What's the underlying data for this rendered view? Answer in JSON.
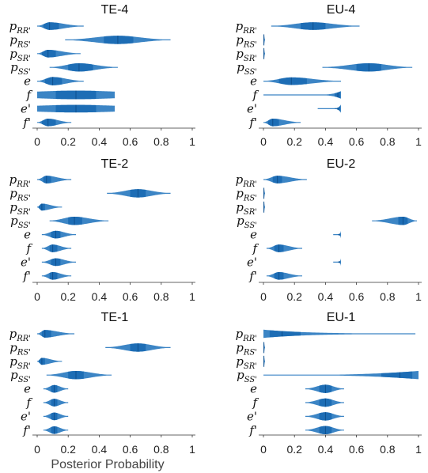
{
  "chart_data": {
    "type": "violin",
    "xlabel": "Posterior Probability",
    "xlim": [
      0,
      1
    ],
    "xticks": [
      0,
      0.2,
      0.4,
      0.6,
      0.8,
      1
    ],
    "xtick_labels": [
      "0",
      "0.2",
      "0.4",
      "0.6",
      "0.8",
      "1"
    ],
    "color": "#2b7bc0",
    "panels": [
      {
        "title": "TE-4",
        "rows": [
          {
            "base": "p",
            "sub": "RR'",
            "min": 0.0,
            "mean": 0.08,
            "q1": 0.04,
            "q3": 0.14,
            "max": 0.3,
            "shape": "peak",
            "width": 0.55
          },
          {
            "base": "p",
            "sub": "RS'",
            "min": 0.18,
            "mean": 0.52,
            "q1": 0.43,
            "q3": 0.62,
            "max": 0.86,
            "shape": "peak",
            "width": 0.6
          },
          {
            "base": "p",
            "sub": "SR'",
            "min": 0.0,
            "mean": 0.07,
            "q1": 0.03,
            "q3": 0.12,
            "max": 0.28,
            "shape": "peak",
            "width": 0.55
          },
          {
            "base": "p",
            "sub": "SS'",
            "min": 0.08,
            "mean": 0.27,
            "q1": 0.2,
            "q3": 0.36,
            "max": 0.52,
            "shape": "peak",
            "width": 0.6
          },
          {
            "base": "e",
            "sub": "",
            "min": 0.0,
            "mean": 0.1,
            "q1": 0.05,
            "q3": 0.16,
            "max": 0.3,
            "shape": "peak",
            "width": 0.6
          },
          {
            "base": "f",
            "sub": "",
            "min": 0.0,
            "mean": 0.25,
            "q1": 0.12,
            "q3": 0.38,
            "max": 0.5,
            "shape": "flat",
            "width": 0.62
          },
          {
            "base": "e",
            "sub": "'",
            "min": 0.0,
            "mean": 0.25,
            "q1": 0.12,
            "q3": 0.38,
            "max": 0.5,
            "shape": "flat",
            "width": 0.55
          },
          {
            "base": "f",
            "sub": "'",
            "min": 0.0,
            "mean": 0.07,
            "q1": 0.03,
            "q3": 0.12,
            "max": 0.22,
            "shape": "peak",
            "width": 0.55
          }
        ]
      },
      {
        "title": "EU-4",
        "rows": [
          {
            "base": "p",
            "sub": "RR'",
            "min": 0.05,
            "mean": 0.32,
            "q1": 0.24,
            "q3": 0.4,
            "max": 0.62,
            "shape": "peak",
            "width": 0.55
          },
          {
            "base": "p",
            "sub": "RS'",
            "min": 0.0,
            "mean": 0.003,
            "q1": 0.0,
            "q3": 0.005,
            "max": 0.01,
            "shape": "thin",
            "width": 0.8
          },
          {
            "base": "p",
            "sub": "SR'",
            "min": 0.0,
            "mean": 0.003,
            "q1": 0.0,
            "q3": 0.005,
            "max": 0.01,
            "shape": "thin",
            "width": 0.8
          },
          {
            "base": "p",
            "sub": "SS'",
            "min": 0.38,
            "mean": 0.68,
            "q1": 0.6,
            "q3": 0.76,
            "max": 0.96,
            "shape": "peak",
            "width": 0.6
          },
          {
            "base": "e",
            "sub": "",
            "min": 0.0,
            "mean": 0.18,
            "q1": 0.1,
            "q3": 0.28,
            "max": 0.5,
            "shape": "peak",
            "width": 0.55
          },
          {
            "base": "f",
            "sub": "",
            "min": 0.0,
            "mean": 0.48,
            "q1": 0.46,
            "q3": 0.495,
            "max": 0.5,
            "shape": "edge",
            "width": 0.55
          },
          {
            "base": "e",
            "sub": "'",
            "min": 0.35,
            "mean": 0.48,
            "q1": 0.46,
            "q3": 0.495,
            "max": 0.5,
            "shape": "edge",
            "width": 0.6
          },
          {
            "base": "f",
            "sub": "'",
            "min": 0.0,
            "mean": 0.06,
            "q1": 0.03,
            "q3": 0.1,
            "max": 0.24,
            "shape": "peak",
            "width": 0.55
          }
        ]
      },
      {
        "title": "TE-2",
        "rows": [
          {
            "base": "p",
            "sub": "RR'",
            "min": 0.0,
            "mean": 0.06,
            "q1": 0.04,
            "q3": 0.09,
            "max": 0.22,
            "shape": "peak",
            "width": 0.55
          },
          {
            "base": "p",
            "sub": "RS'",
            "min": 0.45,
            "mean": 0.65,
            "q1": 0.6,
            "q3": 0.7,
            "max": 0.86,
            "shape": "peak",
            "width": 0.6
          },
          {
            "base": "p",
            "sub": "SR'",
            "min": 0.0,
            "mean": 0.03,
            "q1": 0.01,
            "q3": 0.05,
            "max": 0.16,
            "shape": "peak",
            "width": 0.5
          },
          {
            "base": "p",
            "sub": "SS'",
            "min": 0.08,
            "mean": 0.24,
            "q1": 0.2,
            "q3": 0.29,
            "max": 0.46,
            "shape": "peak",
            "width": 0.6
          },
          {
            "base": "e",
            "sub": "",
            "min": 0.03,
            "mean": 0.12,
            "q1": 0.09,
            "q3": 0.15,
            "max": 0.25,
            "shape": "peak",
            "width": 0.55
          },
          {
            "base": "f",
            "sub": "",
            "min": 0.03,
            "mean": 0.1,
            "q1": 0.08,
            "q3": 0.13,
            "max": 0.22,
            "shape": "peak",
            "width": 0.55
          },
          {
            "base": "e",
            "sub": "'",
            "min": 0.03,
            "mean": 0.12,
            "q1": 0.09,
            "q3": 0.15,
            "max": 0.25,
            "shape": "peak",
            "width": 0.55
          },
          {
            "base": "f",
            "sub": "'",
            "min": 0.03,
            "mean": 0.1,
            "q1": 0.08,
            "q3": 0.13,
            "max": 0.22,
            "shape": "peak",
            "width": 0.55
          }
        ]
      },
      {
        "title": "EU-2",
        "rows": [
          {
            "base": "p",
            "sub": "RR'",
            "min": 0.0,
            "mean": 0.09,
            "q1": 0.06,
            "q3": 0.12,
            "max": 0.28,
            "shape": "peak",
            "width": 0.55
          },
          {
            "base": "p",
            "sub": "RS'",
            "min": 0.0,
            "mean": 0.003,
            "q1": 0.0,
            "q3": 0.005,
            "max": 0.01,
            "shape": "thin",
            "width": 0.8
          },
          {
            "base": "p",
            "sub": "SR'",
            "min": 0.0,
            "mean": 0.003,
            "q1": 0.0,
            "q3": 0.005,
            "max": 0.01,
            "shape": "thin",
            "width": 0.8
          },
          {
            "base": "p",
            "sub": "SS'",
            "min": 0.7,
            "mean": 0.9,
            "q1": 0.87,
            "q3": 0.93,
            "max": 0.99,
            "shape": "peak",
            "width": 0.6
          },
          {
            "base": "e",
            "sub": "",
            "min": 0.45,
            "mean": 0.49,
            "q1": 0.48,
            "q3": 0.495,
            "max": 0.5,
            "shape": "edge",
            "width": 0.55
          },
          {
            "base": "f",
            "sub": "",
            "min": 0.02,
            "mean": 0.1,
            "q1": 0.07,
            "q3": 0.13,
            "max": 0.25,
            "shape": "peak",
            "width": 0.55
          },
          {
            "base": "e",
            "sub": "'",
            "min": 0.45,
            "mean": 0.49,
            "q1": 0.48,
            "q3": 0.495,
            "max": 0.5,
            "shape": "edge",
            "width": 0.55
          },
          {
            "base": "f",
            "sub": "'",
            "min": 0.02,
            "mean": 0.1,
            "q1": 0.07,
            "q3": 0.13,
            "max": 0.25,
            "shape": "peak",
            "width": 0.55
          }
        ]
      },
      {
        "title": "TE-1",
        "rows": [
          {
            "base": "p",
            "sub": "RR'",
            "min": 0.0,
            "mean": 0.05,
            "q1": 0.03,
            "q3": 0.09,
            "max": 0.24,
            "shape": "peak",
            "width": 0.55
          },
          {
            "base": "p",
            "sub": "RS'",
            "min": 0.44,
            "mean": 0.65,
            "q1": 0.6,
            "q3": 0.7,
            "max": 0.86,
            "shape": "peak",
            "width": 0.6
          },
          {
            "base": "p",
            "sub": "SR'",
            "min": 0.0,
            "mean": 0.03,
            "q1": 0.01,
            "q3": 0.05,
            "max": 0.16,
            "shape": "peak",
            "width": 0.5
          },
          {
            "base": "p",
            "sub": "SS'",
            "min": 0.06,
            "mean": 0.25,
            "q1": 0.2,
            "q3": 0.3,
            "max": 0.48,
            "shape": "peak",
            "width": 0.6
          },
          {
            "base": "e",
            "sub": "",
            "min": 0.04,
            "mean": 0.11,
            "q1": 0.09,
            "q3": 0.13,
            "max": 0.2,
            "shape": "peak",
            "width": 0.55
          },
          {
            "base": "f",
            "sub": "",
            "min": 0.04,
            "mean": 0.11,
            "q1": 0.09,
            "q3": 0.13,
            "max": 0.2,
            "shape": "peak",
            "width": 0.55
          },
          {
            "base": "e",
            "sub": "'",
            "min": 0.04,
            "mean": 0.11,
            "q1": 0.09,
            "q3": 0.13,
            "max": 0.2,
            "shape": "peak",
            "width": 0.55
          },
          {
            "base": "f",
            "sub": "'",
            "min": 0.04,
            "mean": 0.11,
            "q1": 0.09,
            "q3": 0.13,
            "max": 0.2,
            "shape": "peak",
            "width": 0.55
          }
        ]
      },
      {
        "title": "EU-1",
        "rows": [
          {
            "base": "p",
            "sub": "RR'",
            "min": 0.0,
            "mean": 0.12,
            "q1": 0.04,
            "q3": 0.24,
            "max": 0.98,
            "shape": "decay",
            "width": 0.6
          },
          {
            "base": "p",
            "sub": "RS'",
            "min": 0.0,
            "mean": 0.003,
            "q1": 0.0,
            "q3": 0.005,
            "max": 0.01,
            "shape": "thin",
            "width": 0.8
          },
          {
            "base": "p",
            "sub": "SR'",
            "min": 0.0,
            "mean": 0.003,
            "q1": 0.0,
            "q3": 0.005,
            "max": 0.01,
            "shape": "thin",
            "width": 0.8
          },
          {
            "base": "p",
            "sub": "SS'",
            "min": 0.0,
            "mean": 0.88,
            "q1": 0.76,
            "q3": 0.96,
            "max": 1.0,
            "shape": "grow",
            "width": 0.6
          },
          {
            "base": "e",
            "sub": "",
            "min": 0.27,
            "mean": 0.4,
            "q1": 0.36,
            "q3": 0.44,
            "max": 0.52,
            "shape": "peak",
            "width": 0.6
          },
          {
            "base": "f",
            "sub": "",
            "min": 0.27,
            "mean": 0.4,
            "q1": 0.36,
            "q3": 0.44,
            "max": 0.52,
            "shape": "peak",
            "width": 0.6
          },
          {
            "base": "e",
            "sub": "'",
            "min": 0.27,
            "mean": 0.4,
            "q1": 0.36,
            "q3": 0.44,
            "max": 0.52,
            "shape": "peak",
            "width": 0.6
          },
          {
            "base": "f",
            "sub": "'",
            "min": 0.27,
            "mean": 0.4,
            "q1": 0.36,
            "q3": 0.44,
            "max": 0.52,
            "shape": "peak",
            "width": 0.6
          }
        ]
      }
    ]
  }
}
